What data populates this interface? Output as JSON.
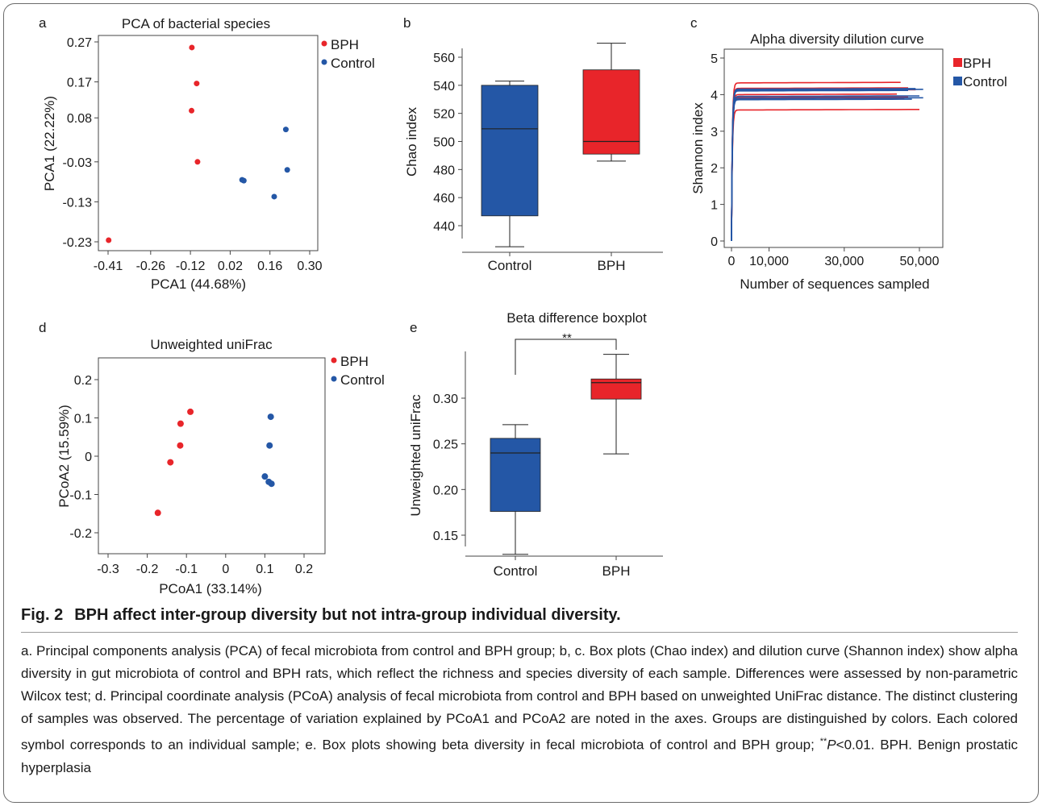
{
  "caption": {
    "label": "Fig. 2",
    "title": "BPH affect inter-group diversity but not intra-group individual diversity.",
    "body_main": "a. Principal components analysis (PCA) of fecal microbiota from control and BPH group; b, c. Box plots (Chao index) and dilution curve (Shannon index) show alpha diversity in gut microbiota of control and BPH rats, which reflect the richness and species diversity of each sample. Differences were assessed by non-parametric Wilcox test; d. Principal coordinate analysis (PCoA) analysis of fecal microbiota from control and BPH based on unweighted UniFrac distance. The distinct clustering of samples was observed. The percentage of variation explained by PCoA1 and PCoA2 are noted in the axes. Groups are distinguished by colors. Each colored symbol corresponds to an individual sample; e. Box plots showing beta diversity in fecal microbiota of control and BPH group; ",
    "sig_mark": "**",
    "p_label": "P",
    "p_tail": "<0.01. BPH. Benign prostatic hyperplasia"
  },
  "colors": {
    "bph": "#e8252a",
    "control": "#2457a6",
    "axis": "#333333"
  },
  "chart_data": [
    {
      "panel": "a",
      "type": "scatter",
      "title": "PCA of bacterial species",
      "xlabel": "PCA1 (44.68%)",
      "ylabel": "PCA1 (22.22%)",
      "xlim": [
        -0.41,
        0.3
      ],
      "ylim": [
        -0.23,
        0.27
      ],
      "xticks": [
        "-0.41",
        "-0.26",
        "-0.12",
        "0.02",
        "0.16",
        "0.30"
      ],
      "yticks": [
        "0.27",
        "0.17",
        "0.08",
        "-0.03",
        "-0.13",
        "-0.23"
      ],
      "legend": [
        "BPH",
        "Control"
      ],
      "series": [
        {
          "name": "BPH",
          "points": [
            [
              -0.115,
              0.256
            ],
            [
              -0.098,
              0.166
            ],
            [
              -0.116,
              0.098
            ],
            [
              -0.095,
              -0.03
            ],
            [
              -0.408,
              -0.226
            ]
          ]
        },
        {
          "name": "Control",
          "points": [
            [
              0.062,
              -0.075
            ],
            [
              0.068,
              -0.077
            ],
            [
              0.216,
              0.051
            ],
            [
              0.221,
              -0.05
            ],
            [
              0.175,
              -0.117
            ]
          ]
        }
      ]
    },
    {
      "panel": "b",
      "type": "box",
      "ylabel": "Chao index",
      "ylim": [
        428,
        568
      ],
      "yticks": [
        "560",
        "540",
        "520",
        "500",
        "480",
        "460",
        "440"
      ],
      "categories": [
        "Control",
        "BPH"
      ],
      "boxes": [
        {
          "group": "Control",
          "min": 425,
          "q1": 447,
          "median": 509,
          "q3": 540,
          "max": 543
        },
        {
          "group": "BPH",
          "min": 486,
          "q1": 491,
          "median": 500,
          "q3": 551,
          "max": 570
        }
      ]
    },
    {
      "panel": "c",
      "type": "line",
      "title": "Alpha diversity dilution curve",
      "xlabel": "Number of sequences sampled",
      "ylabel": "Shannon index",
      "xlim": [
        0,
        52000
      ],
      "ylim": [
        0,
        5
      ],
      "xticks": [
        "0",
        "10,000",
        "30,000",
        "50,000"
      ],
      "yticks": [
        "5",
        "4",
        "3",
        "2",
        "1",
        "0"
      ],
      "legend": [
        "BPH",
        "Control"
      ],
      "series": [
        {
          "name": "BPH",
          "plateaus": [
            4.32,
            4.17,
            4.12,
            4.0,
            3.92,
            3.87,
            3.58
          ],
          "x_end": [
            45000,
            47000,
            49000,
            44000,
            47000,
            46000,
            50000
          ]
        },
        {
          "name": "Control",
          "plateaus": [
            4.15,
            4.13,
            4.1,
            3.95,
            3.9,
            3.86
          ],
          "x_end": [
            49000,
            51000,
            47000,
            50000,
            51000,
            48000
          ]
        }
      ]
    },
    {
      "panel": "d",
      "type": "scatter",
      "title": "Unweighted uniFrac",
      "xlabel": "PCoA1 (33.14%)",
      "ylabel": "PCoA2 (15.59%)",
      "xlim": [
        -0.34,
        0.26
      ],
      "ylim": [
        -0.255,
        0.26
      ],
      "xticks": [
        "-0.3",
        "-0.2",
        "-0.1",
        "0",
        "0.1",
        "0.2"
      ],
      "yticks": [
        "0.2",
        "0.1",
        "0",
        "-0.1",
        "-0.2"
      ],
      "legend": [
        "BPH",
        "Control"
      ],
      "series": [
        {
          "name": "BPH",
          "points": [
            [
              -0.09,
              0.116
            ],
            [
              -0.115,
              0.085
            ],
            [
              -0.116,
              0.028
            ],
            [
              -0.141,
              -0.016
            ],
            [
              -0.173,
              -0.148
            ]
          ]
        },
        {
          "name": "Control",
          "points": [
            [
              0.115,
              0.103
            ],
            [
              0.112,
              0.028
            ],
            [
              0.1,
              -0.053
            ],
            [
              0.11,
              -0.067
            ],
            [
              0.117,
              -0.072
            ]
          ]
        }
      ]
    },
    {
      "panel": "e",
      "type": "box",
      "title": "Beta difference boxplot",
      "ylabel": "Unweighted uniFrac",
      "ylim": [
        0.12,
        0.35
      ],
      "yticks": [
        "0.30",
        "0.25",
        "0.20",
        "0.15"
      ],
      "categories": [
        "Control",
        "BPH"
      ],
      "significance": "**",
      "boxes": [
        {
          "group": "Control",
          "min": 0.129,
          "q1": 0.176,
          "median": 0.24,
          "q3": 0.256,
          "max": 0.271
        },
        {
          "group": "BPH",
          "min": 0.239,
          "q1": 0.299,
          "median": 0.317,
          "q3": 0.321,
          "max": 0.348
        }
      ]
    }
  ]
}
